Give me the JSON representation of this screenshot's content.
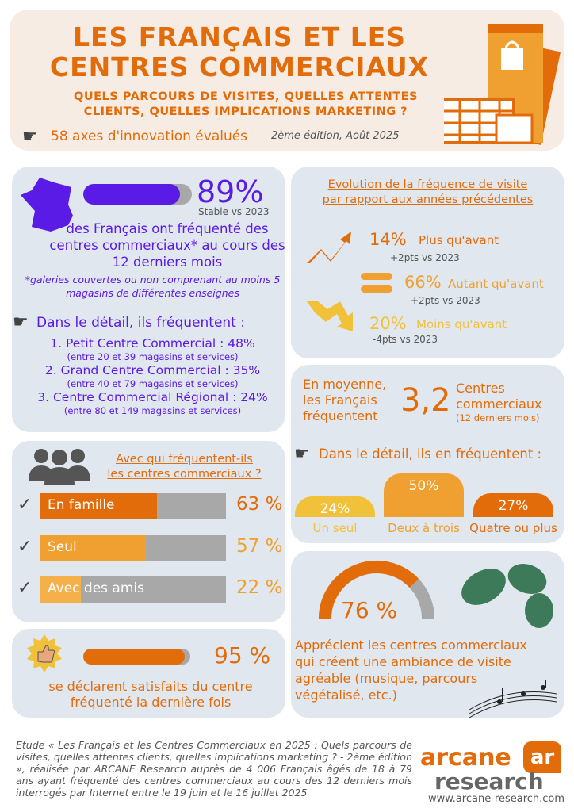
{
  "header": {
    "title": "LES FRANÇAIS ET LES CENTRES COMMERCIAUX",
    "subtitle": "QUELS PARCOURS DE VISITES, QUELLES ATTENTES CLIENTS, QUELLES IMPLICATIONS MARKETING ?",
    "axes": "58 axes d'innovation évalués",
    "edition": "2ème édition, Août 2025"
  },
  "visit": {
    "value": "89%",
    "progress": 89,
    "note": "Stable vs 2023",
    "text": "des Français ont fréquenté des centres commerciaux* au cours des 12 derniers mois",
    "footnote": "*galeries couvertes ou non comprenant au moins 5 magasins de différentes enseignes",
    "detail_title": "Dans le détail, ils fréquentent :",
    "items": [
      {
        "label": "1. Petit Centre Commercial : 48%",
        "sub": "(entre 20 et 39 magasins et services)"
      },
      {
        "label": "2. Grand Centre Commercial : 35%",
        "sub": "(entre 40 et 79 magasins et services)"
      },
      {
        "label": "3. Centre Commercial Régional : 24%",
        "sub": "(entre 80 et 149 magasins et services)"
      }
    ]
  },
  "evolution": {
    "title_1": "Evolution de la fréquence de visite",
    "title_2": "par rapport aux années précédentes",
    "rows": [
      {
        "value": "14%",
        "label": "Plus qu'avant",
        "delta": "+2pts vs 2023"
      },
      {
        "value": "66%",
        "label": "Autant qu'avant",
        "delta": "+2pts vs 2023"
      },
      {
        "value": "20%",
        "label": "Moins qu'avant",
        "delta": "-4pts vs 2023"
      }
    ]
  },
  "average": {
    "left": "En moyenne, les Français fréquentent",
    "value": "3,2",
    "right": "Centres commerciaux",
    "right_sub": "(12 derniers mois)",
    "detail_title": "Dans le détail, ils en fréquentent :",
    "columns": [
      {
        "value": "24%",
        "label": "Un seul",
        "pct": 24
      },
      {
        "value": "50%",
        "label": "Deux à trois",
        "pct": 50
      },
      {
        "value": "27%",
        "label": "Quatre ou plus",
        "pct": 27
      }
    ]
  },
  "company": {
    "title_1": "Avec qui fréquentent-ils",
    "title_2": "les centres commerciaux ?",
    "rows": [
      {
        "label": "En famille",
        "value": "63 %",
        "pct": 63
      },
      {
        "label": "Seul",
        "value": "57 %",
        "pct": 57
      },
      {
        "label": "Avec des amis",
        "value": "22 %",
        "pct": 22
      }
    ]
  },
  "satisfaction": {
    "value": "95 %",
    "progress": 95,
    "text": "se déclarent satisfaits du centre fréquenté la dernière fois"
  },
  "ambiance": {
    "value": "76 %",
    "progress": 76,
    "text": "Apprécient les centres commerciaux qui créent une ambiance de visite agréable (musique, parcours végétalisé, etc.)"
  },
  "footer": {
    "text": "Etude « Les Français et les Centres Commerciaux en 2025 : Quels parcours de visites, quelles attentes clients, quelles implications marketing ? - 2ème édition », réalisée par ARCANE Research auprès de 4 006 Français âgés de 18 à 79 ans ayant fréquenté des centres commerciaux au cours des 12 derniers mois interrogés par Internet entre le 19 juin et le 16 juillet 2025",
    "logo_1": "arcane",
    "logo_2": "research",
    "logo_mark": "ar",
    "url": "www.arcane-research.com"
  },
  "colors": {
    "orange": "#e36c0a",
    "light_orange": "#f0a030",
    "yellow": "#f2c13a",
    "purple": "#5b1be6",
    "card": "#e1e7ee",
    "header": "#f7ece3"
  }
}
